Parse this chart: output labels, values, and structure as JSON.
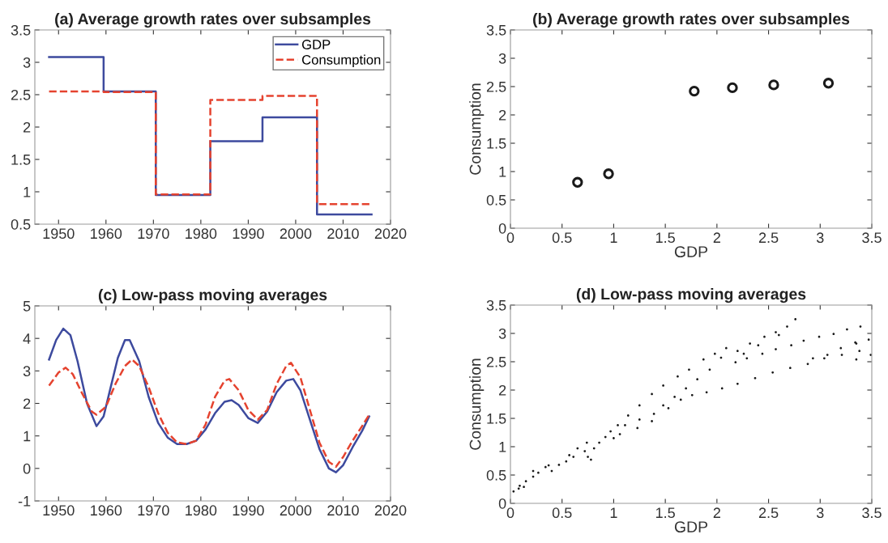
{
  "chart_data": [
    {
      "type": "step",
      "title": "(a) Average growth rates over subsamples",
      "xlim": [
        1945,
        2020
      ],
      "xticks": [
        1950,
        1960,
        1970,
        1980,
        1990,
        2000,
        2010,
        2020
      ],
      "ylim": [
        0.5,
        3.5
      ],
      "yticks": [
        0.5,
        1,
        1.5,
        2,
        2.5,
        3,
        3.5
      ],
      "grid": false,
      "legend": "top right",
      "series": [
        {
          "name": "GDP",
          "color": "#3d4a9e",
          "line_style": "solid",
          "x": [
            1948,
            1959.5,
            1970.5,
            1982,
            1993,
            2004.5,
            2016
          ],
          "values": [
            3.08,
            2.55,
            0.95,
            1.78,
            2.15,
            0.65,
            0.65
          ]
        },
        {
          "name": "Consumption",
          "color": "#e5432f",
          "line_style": "dashed",
          "x": [
            1948,
            1959.5,
            1970.5,
            1982,
            1993,
            2004.5,
            2016
          ],
          "values": [
            2.55,
            2.54,
            0.96,
            2.42,
            2.48,
            0.81,
            0.81
          ]
        }
      ]
    },
    {
      "type": "scatter",
      "title": "(b) Average growth rates over subsamples",
      "xlabel": "GDP",
      "ylabel": "Consumption",
      "xlim": [
        0,
        3.5
      ],
      "xticks": [
        0,
        0.5,
        1,
        1.5,
        2,
        2.5,
        3,
        3.5
      ],
      "ylim": [
        0,
        3.5
      ],
      "yticks": [
        0,
        0.5,
        1,
        1.5,
        2,
        2.5,
        3,
        3.5
      ],
      "grid": false,
      "marker": "circle",
      "series": [
        {
          "color": "#1a1a1a",
          "x": [
            0.65,
            0.95,
            1.78,
            2.15,
            2.55,
            3.08
          ],
          "values": [
            0.81,
            0.96,
            2.42,
            2.48,
            2.53,
            2.56
          ]
        }
      ]
    },
    {
      "type": "line",
      "title": "(c) Low-pass moving averages",
      "xlim": [
        1945,
        2020
      ],
      "xticks": [
        1950,
        1960,
        1970,
        1980,
        1990,
        2000,
        2010,
        2020
      ],
      "ylim": [
        -1,
        5
      ],
      "yticks": [
        -1,
        0,
        1,
        2,
        3,
        4,
        5
      ],
      "grid": false,
      "series": [
        {
          "color": "#3d4a9e",
          "line_style": "solid",
          "x": [
            1948,
            1949.5,
            1951,
            1952.5,
            1954,
            1956,
            1958,
            1959.5,
            1961,
            1962.5,
            1964,
            1965,
            1967,
            1969,
            1971,
            1973,
            1975,
            1977,
            1979,
            1981,
            1983,
            1985,
            1986.5,
            1988,
            1990,
            1992,
            1994,
            1996,
            1998,
            1999.5,
            2001,
            2003,
            2005,
            2007,
            2008.5,
            2010,
            2012,
            2014,
            2015.5
          ],
          "values": [
            3.35,
            3.95,
            4.3,
            4.1,
            3.3,
            2.0,
            1.3,
            1.6,
            2.5,
            3.4,
            3.95,
            3.95,
            3.3,
            2.2,
            1.4,
            0.95,
            0.75,
            0.75,
            0.85,
            1.2,
            1.7,
            2.05,
            2.1,
            1.95,
            1.55,
            1.4,
            1.75,
            2.35,
            2.7,
            2.75,
            2.4,
            1.5,
            0.6,
            0.0,
            -0.12,
            0.1,
            0.65,
            1.15,
            1.6
          ]
        },
        {
          "color": "#e5432f",
          "line_style": "dashed",
          "x": [
            1948,
            1950,
            1951.5,
            1953,
            1955,
            1957,
            1958,
            1960,
            1962,
            1964,
            1965.5,
            1967,
            1969,
            1971,
            1973,
            1975,
            1977,
            1979,
            1981,
            1983,
            1985,
            1986,
            1988,
            1990,
            1992,
            1994,
            1996,
            1998,
            1999,
            2001,
            2003,
            2005,
            2007,
            2008.5,
            2010,
            2012,
            2014,
            2015.5
          ],
          "values": [
            2.55,
            2.95,
            3.1,
            2.9,
            2.3,
            1.75,
            1.65,
            1.9,
            2.6,
            3.15,
            3.35,
            3.15,
            2.5,
            1.7,
            1.1,
            0.8,
            0.75,
            0.85,
            1.35,
            2.2,
            2.7,
            2.75,
            2.4,
            1.8,
            1.5,
            1.8,
            2.6,
            3.15,
            3.25,
            2.8,
            1.8,
            0.8,
            0.2,
            0.05,
            0.35,
            0.85,
            1.3,
            1.65
          ]
        }
      ]
    },
    {
      "type": "scatter",
      "title": "(d) Low-pass moving averages",
      "xlabel": "GDP",
      "ylabel": "Consumption",
      "xlim": [
        0,
        3.5
      ],
      "xticks": [
        0,
        0.5,
        1,
        1.5,
        2,
        2.5,
        3,
        3.5
      ],
      "ylim": [
        0,
        3.5
      ],
      "yticks": [
        0,
        0.5,
        1,
        1.5,
        2,
        2.5,
        3,
        3.5
      ],
      "grid": false,
      "marker": "point",
      "series": [
        {
          "color": "#1a1a1a",
          "x": [
            0.03,
            0.09,
            0.15,
            0.22,
            0.27,
            0.34,
            0.4,
            0.47,
            0.54,
            0.61,
            0.65,
            0.57,
            0.37,
            0.22,
            0.08,
            0.13,
            0.75,
            0.78,
            0.72,
            0.74,
            0.81,
            0.86,
            0.92,
            0.97,
            1.04,
            1.14,
            1.25,
            1.37,
            1.48,
            1.62,
            1.73,
            1.87,
            1.98,
            2.09,
            2.04,
            1.93,
            1.81,
            1.7,
            1.59,
            1.48,
            1.39,
            1.25,
            1.11,
            1.0,
            1.06,
            1.23,
            1.37,
            1.53,
            1.65,
            1.76,
            1.9,
            2.05,
            2.2,
            2.37,
            2.54,
            2.71,
            2.88,
            3.04,
            3.2,
            3.34,
            3.47,
            2.2,
            2.32,
            2.46,
            2.57,
            2.68,
            2.76,
            2.6,
            2.4,
            2.26,
            2.84,
            2.99,
            3.13,
            3.26,
            3.39,
            3.35,
            3.38,
            3.35,
            3.21,
            3.07,
            2.93,
            2.72,
            2.57,
            2.44,
            2.29,
            2.18,
            3.49
          ],
          "values": [
            0.21,
            0.31,
            0.39,
            0.47,
            0.54,
            0.64,
            0.57,
            0.68,
            0.74,
            0.82,
            0.97,
            0.85,
            0.67,
            0.57,
            0.26,
            0.29,
            0.82,
            0.77,
            0.92,
            1.07,
            0.97,
            1.07,
            1.17,
            1.27,
            1.38,
            1.55,
            1.73,
            1.93,
            2.08,
            2.24,
            2.36,
            2.54,
            2.64,
            2.74,
            2.57,
            2.36,
            2.19,
            2.03,
            1.88,
            1.73,
            1.58,
            1.48,
            1.38,
            1.15,
            1.22,
            1.33,
            1.45,
            1.68,
            1.83,
            1.91,
            1.96,
            2.03,
            2.11,
            2.21,
            2.31,
            2.39,
            2.46,
            2.56,
            2.74,
            2.84,
            2.89,
            2.69,
            2.82,
            2.94,
            3.02,
            3.12,
            3.25,
            2.97,
            2.79,
            2.64,
            2.87,
            2.94,
            2.99,
            3.07,
            3.12,
            2.82,
            2.69,
            2.54,
            2.62,
            2.62,
            2.56,
            2.79,
            2.72,
            2.64,
            2.56,
            2.49,
            2.62
          ]
        }
      ]
    }
  ]
}
